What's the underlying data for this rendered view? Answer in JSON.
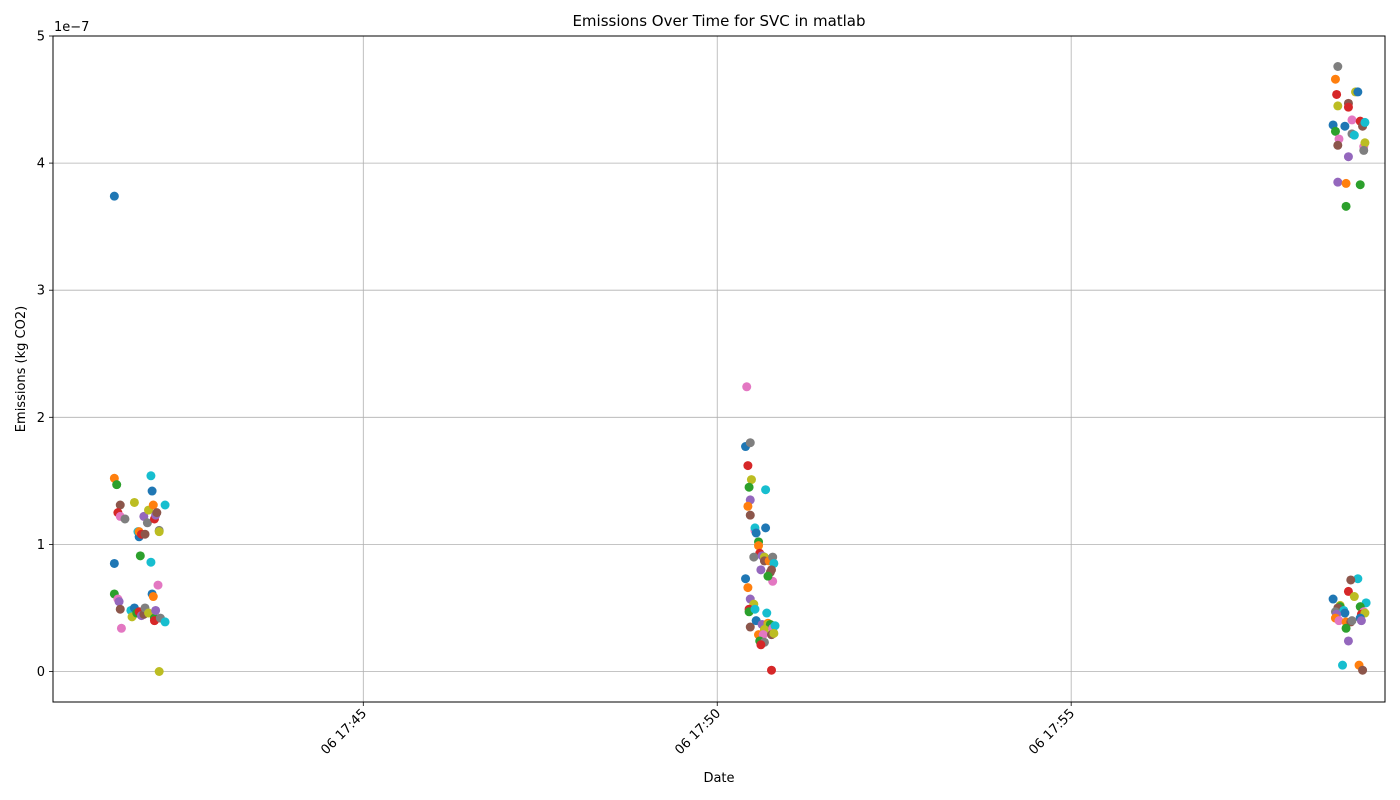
{
  "chart_data": {
    "type": "scatter",
    "title": "Emissions Over Time for SVC in matlab",
    "xlabel": "Date",
    "ylabel": "Emissions (kg CO2)",
    "y_scale_label": "1e−7",
    "xlim": [
      "06 17:40:37",
      "06 17:59:26"
    ],
    "ylim": [
      -0.24,
      5.0
    ],
    "y_ticks": [
      0,
      1,
      2,
      3,
      4,
      5
    ],
    "y_tick_labels": [
      "0",
      "1",
      "2",
      "3",
      "4",
      "5"
    ],
    "x_ticks": [
      "06 17:45:00",
      "06 17:50:00",
      "06 17:55:00"
    ],
    "x_tick_labels": [
      "06 17:45",
      "06 17:50",
      "06 17:55"
    ],
    "grid": true,
    "legend": "none",
    "colors": [
      "#1f77b4",
      "#ff7f0e",
      "#2ca02c",
      "#d62728",
      "#9467bd",
      "#8c564b",
      "#e377c2",
      "#7f7f7f",
      "#bcbd22",
      "#17becf"
    ],
    "points": [
      {
        "t": "06 17:41:29",
        "v": 3.74,
        "c": "#1f77b4"
      },
      {
        "t": "06 17:41:29",
        "v": 1.52,
        "c": "#ff7f0e"
      },
      {
        "t": "06 17:41:31",
        "v": 1.47,
        "c": "#2ca02c"
      },
      {
        "t": "06 17:41:34",
        "v": 1.31,
        "c": "#8c564b"
      },
      {
        "t": "06 17:41:32",
        "v": 1.25,
        "c": "#d62728"
      },
      {
        "t": "06 17:41:34",
        "v": 1.22,
        "c": "#e377c2"
      },
      {
        "t": "06 17:41:38",
        "v": 1.2,
        "c": "#7f7f7f"
      },
      {
        "t": "06 17:41:46",
        "v": 1.33,
        "c": "#bcbd22"
      },
      {
        "t": "06 17:41:49",
        "v": 1.1,
        "c": "#17becf"
      },
      {
        "t": "06 17:41:50",
        "v": 1.06,
        "c": "#1f77b4"
      },
      {
        "t": "06 17:41:50",
        "v": 1.1,
        "c": "#ff7f0e"
      },
      {
        "t": "06 17:41:52",
        "v": 1.08,
        "c": "#d62728"
      },
      {
        "t": "06 17:41:55",
        "v": 1.08,
        "c": "#8c564b"
      },
      {
        "t": "06 17:41:54",
        "v": 1.22,
        "c": "#9467bd"
      },
      {
        "t": "06 17:41:57",
        "v": 1.17,
        "c": "#7f7f7f"
      },
      {
        "t": "06 17:41:58",
        "v": 1.27,
        "c": "#bcbd22"
      },
      {
        "t": "06 17:42:00",
        "v": 1.54,
        "c": "#17becf"
      },
      {
        "t": "06 17:42:01",
        "v": 1.42,
        "c": "#1f77b4"
      },
      {
        "t": "06 17:42:02",
        "v": 1.31,
        "c": "#ff7f0e"
      },
      {
        "t": "06 17:42:03",
        "v": 1.2,
        "c": "#d62728"
      },
      {
        "t": "06 17:42:04",
        "v": 1.23,
        "c": "#9467bd"
      },
      {
        "t": "06 17:42:05",
        "v": 1.25,
        "c": "#8c564b"
      },
      {
        "t": "06 17:42:07",
        "v": 1.11,
        "c": "#7f7f7f"
      },
      {
        "t": "06 17:42:07",
        "v": 1.1,
        "c": "#bcbd22"
      },
      {
        "t": "06 17:42:12",
        "v": 1.31,
        "c": "#17becf"
      },
      {
        "t": "06 17:41:29",
        "v": 0.85,
        "c": "#1f77b4"
      },
      {
        "t": "06 17:41:51",
        "v": 0.91,
        "c": "#2ca02c"
      },
      {
        "t": "06 17:42:00",
        "v": 0.86,
        "c": "#17becf"
      },
      {
        "t": "06 17:41:29",
        "v": 0.61,
        "c": "#2ca02c"
      },
      {
        "t": "06 17:41:32",
        "v": 0.57,
        "c": "#e377c2"
      },
      {
        "t": "06 17:41:33",
        "v": 0.55,
        "c": "#9467bd"
      },
      {
        "t": "06 17:41:34",
        "v": 0.49,
        "c": "#8c564b"
      },
      {
        "t": "06 17:41:35",
        "v": 0.34,
        "c": "#e377c2"
      },
      {
        "t": "06 17:41:43",
        "v": 0.48,
        "c": "#17becf"
      },
      {
        "t": "06 17:41:44",
        "v": 0.43,
        "c": "#bcbd22"
      },
      {
        "t": "06 17:41:46",
        "v": 0.5,
        "c": "#1f77b4"
      },
      {
        "t": "06 17:41:48",
        "v": 0.46,
        "c": "#2ca02c"
      },
      {
        "t": "06 17:41:50",
        "v": 0.47,
        "c": "#d62728"
      },
      {
        "t": "06 17:41:52",
        "v": 0.44,
        "c": "#9467bd"
      },
      {
        "t": "06 17:41:54",
        "v": 0.45,
        "c": "#8c564b"
      },
      {
        "t": "06 17:41:55",
        "v": 0.5,
        "c": "#7f7f7f"
      },
      {
        "t": "06 17:41:58",
        "v": 0.46,
        "c": "#bcbd22"
      },
      {
        "t": "06 17:42:01",
        "v": 0.61,
        "c": "#1f77b4"
      },
      {
        "t": "06 17:42:02",
        "v": 0.59,
        "c": "#ff7f0e"
      },
      {
        "t": "06 17:42:03",
        "v": 0.42,
        "c": "#2ca02c"
      },
      {
        "t": "06 17:42:03",
        "v": 0.4,
        "c": "#d62728"
      },
      {
        "t": "06 17:42:04",
        "v": 0.48,
        "c": "#9467bd"
      },
      {
        "t": "06 17:42:06",
        "v": 0.68,
        "c": "#e377c2"
      },
      {
        "t": "06 17:42:08",
        "v": 0.42,
        "c": "#7f7f7f"
      },
      {
        "t": "06 17:42:07",
        "v": 0.0,
        "c": "#bcbd22"
      },
      {
        "t": "06 17:42:12",
        "v": 0.39,
        "c": "#17becf"
      },
      {
        "t": "06 17:50:25",
        "v": 2.24,
        "c": "#e377c2"
      },
      {
        "t": "06 17:50:24",
        "v": 1.77,
        "c": "#1f77b4"
      },
      {
        "t": "06 17:50:28",
        "v": 1.8,
        "c": "#7f7f7f"
      },
      {
        "t": "06 17:50:26",
        "v": 1.62,
        "c": "#d62728"
      },
      {
        "t": "06 17:50:29",
        "v": 1.51,
        "c": "#bcbd22"
      },
      {
        "t": "06 17:50:27",
        "v": 1.45,
        "c": "#2ca02c"
      },
      {
        "t": "06 17:50:28",
        "v": 1.35,
        "c": "#9467bd"
      },
      {
        "t": "06 17:50:26",
        "v": 1.3,
        "c": "#ff7f0e"
      },
      {
        "t": "06 17:50:28",
        "v": 1.23,
        "c": "#8c564b"
      },
      {
        "t": "06 17:50:32",
        "v": 1.11,
        "c": "#e377c2"
      },
      {
        "t": "06 17:50:32",
        "v": 1.13,
        "c": "#17becf"
      },
      {
        "t": "06 17:50:33",
        "v": 1.09,
        "c": "#1f77b4"
      },
      {
        "t": "06 17:50:35",
        "v": 1.02,
        "c": "#2ca02c"
      },
      {
        "t": "06 17:50:41",
        "v": 1.43,
        "c": "#17becf"
      },
      {
        "t": "06 17:50:41",
        "v": 1.13,
        "c": "#1f77b4"
      },
      {
        "t": "06 17:50:35",
        "v": 0.99,
        "c": "#ff7f0e"
      },
      {
        "t": "06 17:50:36",
        "v": 0.93,
        "c": "#d62728"
      },
      {
        "t": "06 17:50:31",
        "v": 0.9,
        "c": "#7f7f7f"
      },
      {
        "t": "06 17:50:38",
        "v": 0.91,
        "c": "#9467bd"
      },
      {
        "t": "06 17:50:40",
        "v": 0.9,
        "c": "#bcbd22"
      },
      {
        "t": "06 17:50:40",
        "v": 0.87,
        "c": "#8c564b"
      },
      {
        "t": "06 17:50:44",
        "v": 0.87,
        "c": "#ff7f0e"
      },
      {
        "t": "06 17:50:47",
        "v": 0.9,
        "c": "#7f7f7f"
      },
      {
        "t": "06 17:50:48",
        "v": 0.85,
        "c": "#17becf"
      },
      {
        "t": "06 17:50:37",
        "v": 0.8,
        "c": "#9467bd"
      },
      {
        "t": "06 17:50:45",
        "v": 0.78,
        "c": "#8c564b"
      },
      {
        "t": "06 17:50:46",
        "v": 0.8,
        "c": "#8c564b"
      },
      {
        "t": "06 17:50:47",
        "v": 0.71,
        "c": "#e377c2"
      },
      {
        "t": "06 17:50:43",
        "v": 0.75,
        "c": "#2ca02c"
      },
      {
        "t": "06 17:50:24",
        "v": 0.73,
        "c": "#1f77b4"
      },
      {
        "t": "06 17:50:26",
        "v": 0.66,
        "c": "#ff7f0e"
      },
      {
        "t": "06 17:50:28",
        "v": 0.57,
        "c": "#9467bd"
      },
      {
        "t": "06 17:50:31",
        "v": 0.53,
        "c": "#bcbd22"
      },
      {
        "t": "06 17:50:27",
        "v": 0.49,
        "c": "#d62728"
      },
      {
        "t": "06 17:50:27",
        "v": 0.47,
        "c": "#2ca02c"
      },
      {
        "t": "06 17:50:32",
        "v": 0.49,
        "c": "#17becf"
      },
      {
        "t": "06 17:50:42",
        "v": 0.46,
        "c": "#17becf"
      },
      {
        "t": "06 17:50:28",
        "v": 0.35,
        "c": "#8c564b"
      },
      {
        "t": "06 17:50:33",
        "v": 0.4,
        "c": "#1f77b4"
      },
      {
        "t": "06 17:50:38",
        "v": 0.37,
        "c": "#9467bd"
      },
      {
        "t": "06 17:50:43",
        "v": 0.38,
        "c": "#ff7f0e"
      },
      {
        "t": "06 17:50:43",
        "v": 0.37,
        "c": "#bcbd22"
      },
      {
        "t": "06 17:50:45",
        "v": 0.37,
        "c": "#2ca02c"
      },
      {
        "t": "06 17:50:40",
        "v": 0.33,
        "c": "#bcbd22"
      },
      {
        "t": "06 17:50:47",
        "v": 0.34,
        "c": "#e377c2"
      },
      {
        "t": "06 17:50:49",
        "v": 0.36,
        "c": "#17becf"
      },
      {
        "t": "06 17:50:35",
        "v": 0.29,
        "c": "#ff7f0e"
      },
      {
        "t": "06 17:50:39",
        "v": 0.29,
        "c": "#e377c2"
      },
      {
        "t": "06 17:50:46",
        "v": 0.29,
        "c": "#8c564b"
      },
      {
        "t": "06 17:50:48",
        "v": 0.3,
        "c": "#bcbd22"
      },
      {
        "t": "06 17:50:36",
        "v": 0.24,
        "c": "#2ca02c"
      },
      {
        "t": "06 17:50:40",
        "v": 0.23,
        "c": "#7f7f7f"
      },
      {
        "t": "06 17:50:37",
        "v": 0.21,
        "c": "#d62728"
      },
      {
        "t": "06 17:50:46",
        "v": 0.01,
        "c": "#d62728"
      },
      {
        "t": "06 17:58:46",
        "v": 4.76,
        "c": "#7f7f7f"
      },
      {
        "t": "06 17:58:44",
        "v": 4.66,
        "c": "#ff7f0e"
      },
      {
        "t": "06 17:58:45",
        "v": 4.54,
        "c": "#d62728"
      },
      {
        "t": "06 17:59:01",
        "v": 4.56,
        "c": "#bcbd22"
      },
      {
        "t": "06 17:59:03",
        "v": 4.56,
        "c": "#1f77b4"
      },
      {
        "t": "06 17:58:46",
        "v": 4.45,
        "c": "#bcbd22"
      },
      {
        "t": "06 17:58:55",
        "v": 4.47,
        "c": "#8c564b"
      },
      {
        "t": "06 17:58:55",
        "v": 4.44,
        "c": "#d62728"
      },
      {
        "t": "06 17:58:58",
        "v": 4.34,
        "c": "#e377c2"
      },
      {
        "t": "06 17:58:42",
        "v": 4.3,
        "c": "#1f77b4"
      },
      {
        "t": "06 17:58:52",
        "v": 4.29,
        "c": "#1f77b4"
      },
      {
        "t": "06 17:59:05",
        "v": 4.33,
        "c": "#d62728"
      },
      {
        "t": "06 17:59:07",
        "v": 4.29,
        "c": "#8c564b"
      },
      {
        "t": "06 17:59:09",
        "v": 4.32,
        "c": "#17becf"
      },
      {
        "t": "06 17:58:44",
        "v": 4.25,
        "c": "#2ca02c"
      },
      {
        "t": "06 17:58:58",
        "v": 4.23,
        "c": "#7f7f7f"
      },
      {
        "t": "06 17:59:00",
        "v": 4.22,
        "c": "#17becf"
      },
      {
        "t": "06 17:58:47",
        "v": 4.19,
        "c": "#e377c2"
      },
      {
        "t": "06 17:58:46",
        "v": 4.14,
        "c": "#8c564b"
      },
      {
        "t": "06 17:59:08",
        "v": 4.13,
        "c": "#e377c2"
      },
      {
        "t": "06 17:59:09",
        "v": 4.16,
        "c": "#bcbd22"
      },
      {
        "t": "06 17:59:08",
        "v": 4.1,
        "c": "#7f7f7f"
      },
      {
        "t": "06 17:58:55",
        "v": 4.05,
        "c": "#9467bd"
      },
      {
        "t": "06 17:58:46",
        "v": 3.85,
        "c": "#9467bd"
      },
      {
        "t": "06 17:58:53",
        "v": 3.84,
        "c": "#ff7f0e"
      },
      {
        "t": "06 17:59:05",
        "v": 3.83,
        "c": "#2ca02c"
      },
      {
        "t": "06 17:58:53",
        "v": 3.66,
        "c": "#2ca02c"
      },
      {
        "t": "06 17:59:03",
        "v": 0.73,
        "c": "#17becf"
      },
      {
        "t": "06 17:58:57",
        "v": 0.72,
        "c": "#8c564b"
      },
      {
        "t": "06 17:58:55",
        "v": 0.63,
        "c": "#d62728"
      },
      {
        "t": "06 17:59:00",
        "v": 0.59,
        "c": "#bcbd22"
      },
      {
        "t": "06 17:58:42",
        "v": 0.57,
        "c": "#1f77b4"
      },
      {
        "t": "06 17:59:10",
        "v": 0.54,
        "c": "#17becf"
      },
      {
        "t": "06 17:58:48",
        "v": 0.52,
        "c": "#bcbd22"
      },
      {
        "t": "06 17:58:48",
        "v": 0.51,
        "c": "#2ca02c"
      },
      {
        "t": "06 17:58:46",
        "v": 0.5,
        "c": "#8c564b"
      },
      {
        "t": "06 17:59:05",
        "v": 0.51,
        "c": "#2ca02c"
      },
      {
        "t": "06 17:58:44",
        "v": 0.47,
        "c": "#7f7f7f"
      },
      {
        "t": "06 17:58:51",
        "v": 0.48,
        "c": "#17becf"
      },
      {
        "t": "06 17:58:52",
        "v": 0.46,
        "c": "#1f77b4"
      },
      {
        "t": "06 17:58:45",
        "v": 0.45,
        "c": "#9467bd"
      },
      {
        "t": "06 17:59:08",
        "v": 0.47,
        "c": "#e377c2"
      },
      {
        "t": "06 17:59:06",
        "v": 0.45,
        "c": "#d62728"
      },
      {
        "t": "06 17:59:09",
        "v": 0.46,
        "c": "#bcbd22"
      },
      {
        "t": "06 17:58:44",
        "v": 0.42,
        "c": "#ff7f0e"
      },
      {
        "t": "06 17:59:05",
        "v": 0.42,
        "c": "#1f77b4"
      },
      {
        "t": "06 17:59:06",
        "v": 0.4,
        "c": "#9467bd"
      },
      {
        "t": "06 17:58:47",
        "v": 0.4,
        "c": "#e377c2"
      },
      {
        "t": "06 17:58:53",
        "v": 0.39,
        "c": "#ff7f0e"
      },
      {
        "t": "06 17:58:57",
        "v": 0.39,
        "c": "#8c564b"
      },
      {
        "t": "06 17:58:58",
        "v": 0.4,
        "c": "#7f7f7f"
      },
      {
        "t": "06 17:58:53",
        "v": 0.34,
        "c": "#2ca02c"
      },
      {
        "t": "06 17:58:55",
        "v": 0.24,
        "c": "#9467bd"
      },
      {
        "t": "06 17:58:50",
        "v": 0.05,
        "c": "#17becf"
      },
      {
        "t": "06 17:59:04",
        "v": 0.05,
        "c": "#ff7f0e"
      },
      {
        "t": "06 17:59:07",
        "v": 0.01,
        "c": "#8c564b"
      }
    ]
  }
}
